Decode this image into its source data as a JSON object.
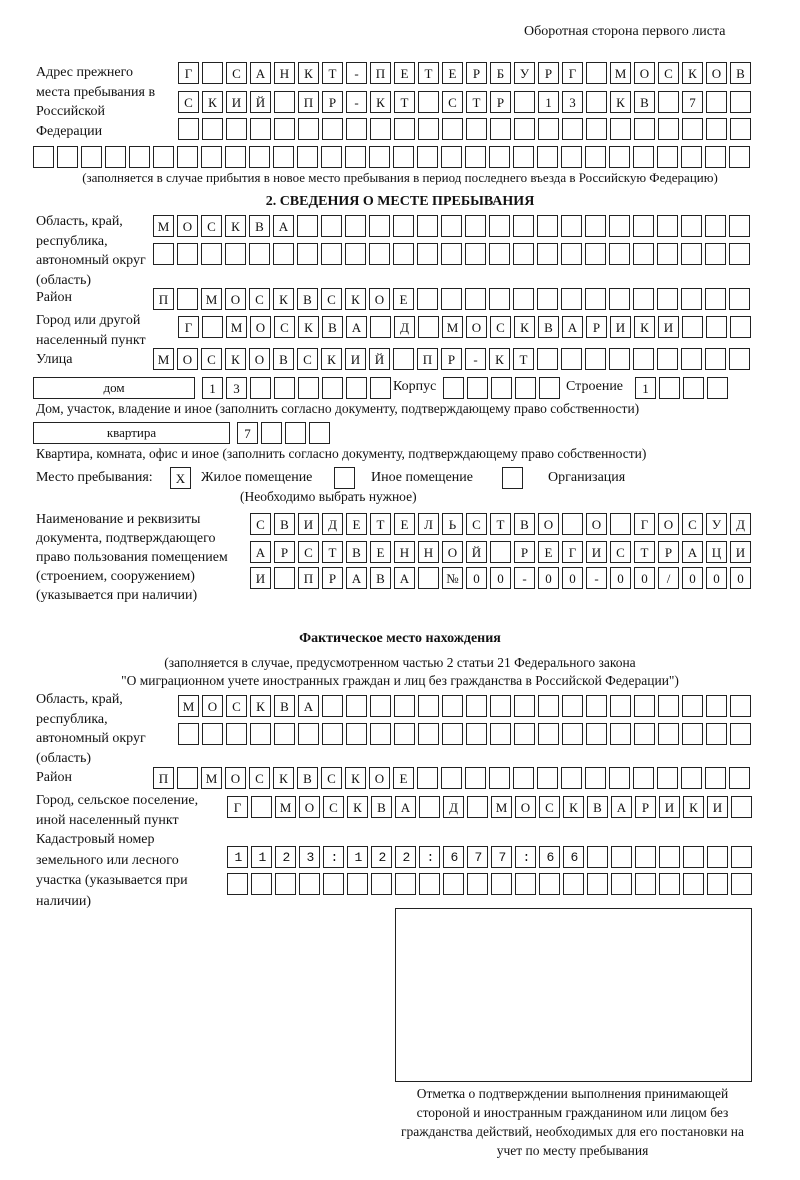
{
  "header": {
    "page_side": "Оборотная сторона первого листа"
  },
  "previous_address": {
    "label": "Адрес прежнего места пребывания в Российской Федерации",
    "rows": [
      "Г САНКТ-ПЕТЕРБУРГ МОСКОВ",
      "СКИЙ ПР-КТ СТР 13 КВ 7  ",
      "                        ",
      "                              "
    ],
    "note": "(заполняется в случае прибытия в новое место пребывания в период последнего въезда в Российскую Федерацию)"
  },
  "section2": {
    "title": "2. СВЕДЕНИЯ О МЕСТЕ ПРЕБЫВАНИЯ",
    "region_label": "Область, край, республика, автономный округ (область)",
    "region_rows": [
      "МОСКВА                   ",
      "                         "
    ],
    "district_label": "Район",
    "district_row": "П МОСКВСКОЕ              ",
    "city_label": "Город или другой населенный пункт",
    "city_row": "Г МОСКВА Д МОСКВАРИКИ   ",
    "street_label": "Улица",
    "street_row": "МОСКОВСКИЙ ПР-КТ         ",
    "house_type": "дом",
    "house_cells": "13      ",
    "building_label": "Корпус",
    "building_cells": "     ",
    "structure_label": "Строение",
    "structure_cells": "1   ",
    "house_note": "Дом, участок, владение и иное (заполнить согласно документу, подтверждающему право собственности)",
    "apartment_type": "квартира",
    "apartment_cells": "7   ",
    "apartment_note": "Квартира, комната, офис и иное (заполнить согласно документу, подтверждающему право собственности)",
    "stay_place_label": "Место пребывания:",
    "stay_options": [
      {
        "label": "Жилое помещение",
        "mark": "X"
      },
      {
        "label": "Иное помещение",
        "mark": ""
      },
      {
        "label": "Организация",
        "mark": ""
      }
    ],
    "stay_note": "(Необходимо выбрать нужное)",
    "document_label": "Наименование и реквизиты документа, подтверждающего право пользования помещением (строением, сооружением) (указывается при наличии)",
    "document_rows": [
      "СВИДЕТЕЛЬСТВО О ГОСУД",
      "АРСТВЕННОЙ РЕГИСТРАЦИ",
      "И ПРАВА №00-00-00/000"
    ]
  },
  "actual_location": {
    "title": "Фактическое место нахождения",
    "note1": "(заполняется в случае, предусмотренном частью 2 статьи 21 Федерального закона",
    "note2": "\"О миграционном учете иностранных граждан и лиц без гражданства в Российской Федерации\")",
    "region_label": "Область, край, республика, автономный округ (область)",
    "region_rows": [
      "МОСКВА                  ",
      "                        "
    ],
    "district_label": "Район",
    "district_row": "П МОСКВСКОЕ              ",
    "city_label": "Город, сельское поселение, иной населенный пункт",
    "city_row": "Г МОСКВА Д МОСКВАРИКИ ",
    "cadastral_label": "Кадастровый номер земельного или лесного участка (указывается при наличии)",
    "cadastral_rows": [
      "1123:122:677:66       ",
      "                      "
    ]
  },
  "confirmation": {
    "caption": "Отметка о подтверждении выполнения принимающей стороной и иностранным гражданином или лицом без гражданства действий, необходимых для его постановки на учет по месту пребывания"
  }
}
